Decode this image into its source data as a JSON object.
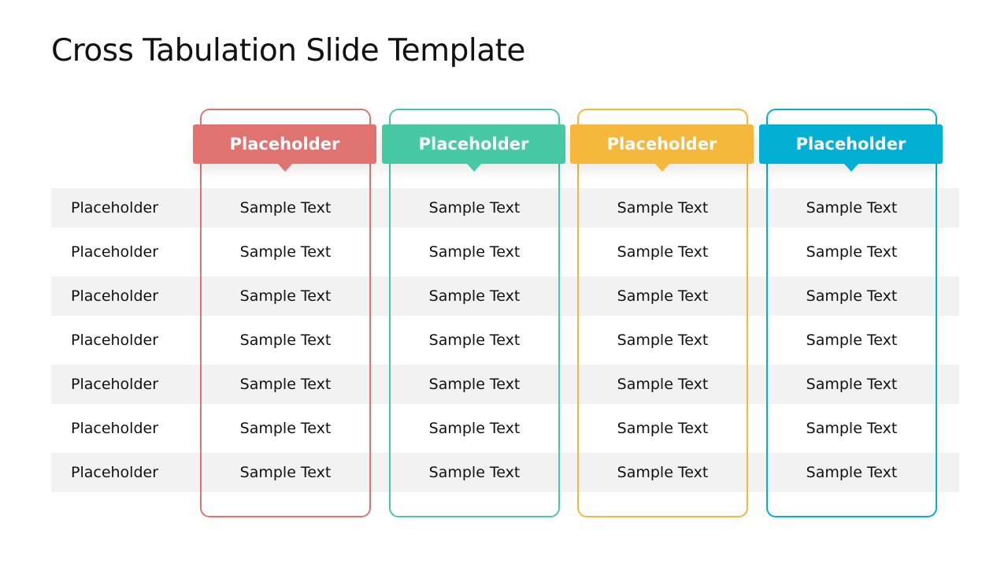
{
  "title": "Cross Tabulation Slide Template",
  "columns": [
    {
      "header": "Placeholder",
      "color": "#e07370"
    },
    {
      "header": "Placeholder",
      "color": "#47c9a6"
    },
    {
      "header": "Placeholder",
      "color": "#f5b73c"
    },
    {
      "header": "Placeholder",
      "color": "#03afd4"
    }
  ],
  "rows": [
    {
      "label": "Placeholder",
      "cells": [
        "Sample Text",
        "Sample Text",
        "Sample Text",
        "Sample Text"
      ]
    },
    {
      "label": "Placeholder",
      "cells": [
        "Sample Text",
        "Sample Text",
        "Sample Text",
        "Sample Text"
      ]
    },
    {
      "label": "Placeholder",
      "cells": [
        "Sample Text",
        "Sample Text",
        "Sample Text",
        "Sample Text"
      ]
    },
    {
      "label": "Placeholder",
      "cells": [
        "Sample Text",
        "Sample Text",
        "Sample Text",
        "Sample Text"
      ]
    },
    {
      "label": "Placeholder",
      "cells": [
        "Sample Text",
        "Sample Text",
        "Sample Text",
        "Sample Text"
      ]
    },
    {
      "label": "Placeholder",
      "cells": [
        "Sample Text",
        "Sample Text",
        "Sample Text",
        "Sample Text"
      ]
    },
    {
      "label": "Placeholder",
      "cells": [
        "Sample Text",
        "Sample Text",
        "Sample Text",
        "Sample Text"
      ]
    }
  ]
}
